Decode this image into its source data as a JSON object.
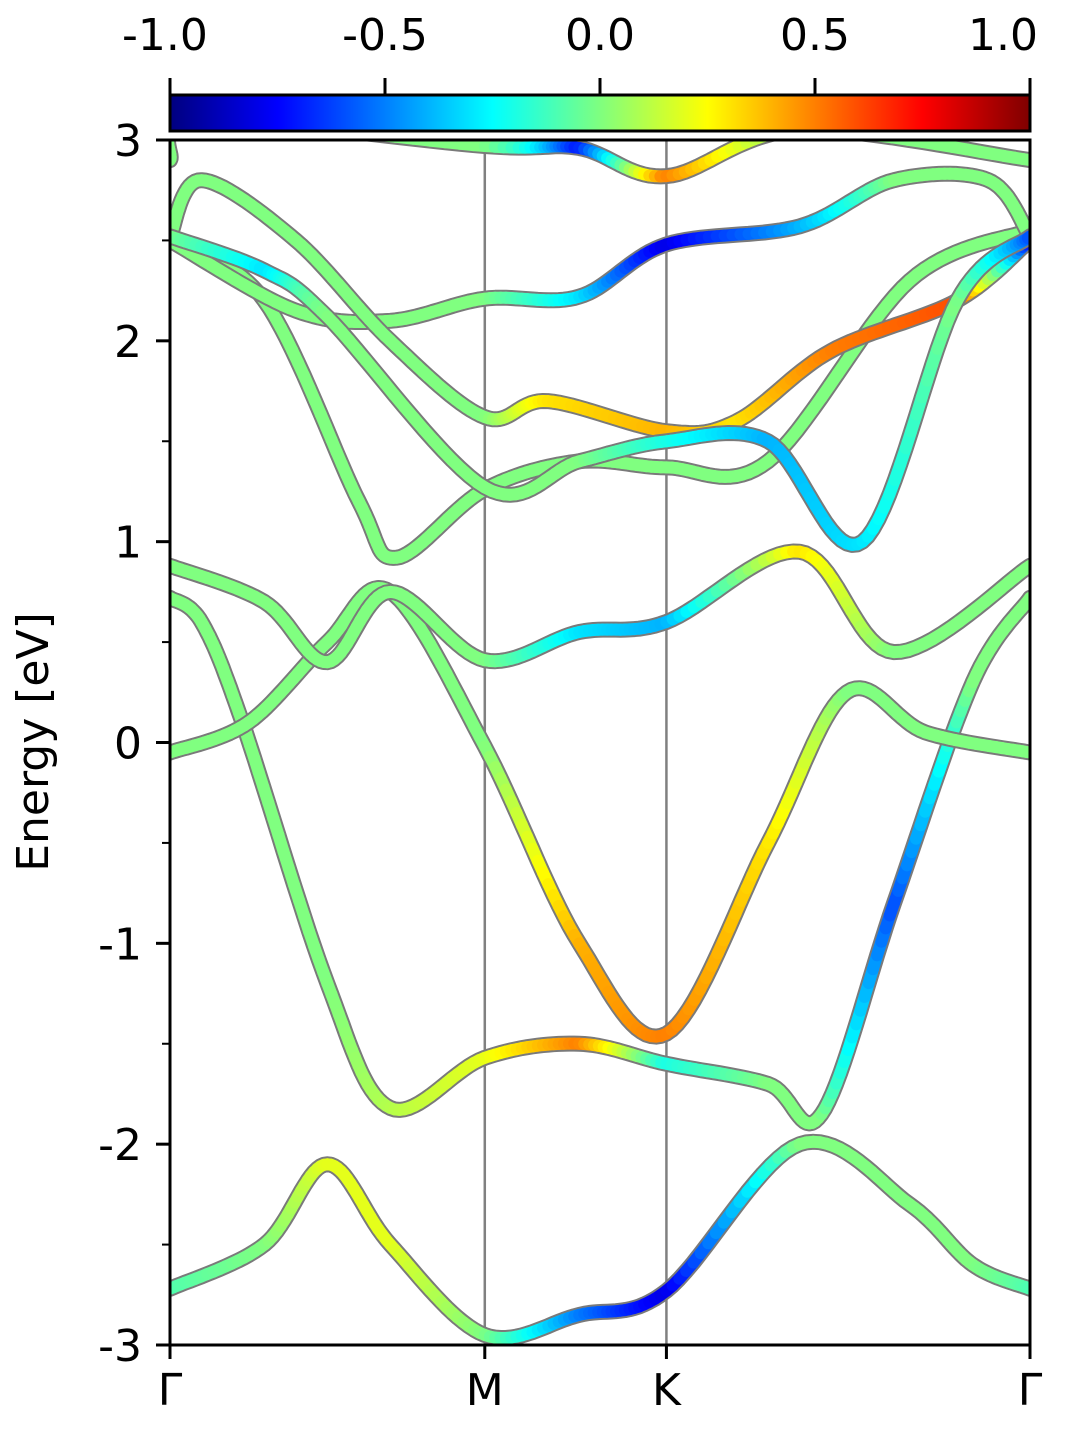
{
  "chart_data": {
    "type": "line",
    "title": "",
    "xlabel": "",
    "ylabel": "Energy [eV]",
    "ylim": [
      -3,
      3
    ],
    "yticks": [
      "-3",
      "-2",
      "-1",
      "0",
      "1",
      "2",
      "3"
    ],
    "yticks_values": [
      -3,
      -2,
      -1,
      0,
      1,
      2,
      3
    ],
    "x_high_symmetry": [
      {
        "label": "Γ",
        "x": 0.0
      },
      {
        "label": "M",
        "x": 1.0
      },
      {
        "label": "K",
        "x": 1.577
      },
      {
        "label": "Γ",
        "x": 2.732
      }
    ],
    "xlim": [
      0.0,
      2.732
    ],
    "colorbar": {
      "min": -1.0,
      "max": 1.0,
      "ticks": [
        "-1.0",
        "-0.5",
        "0.0",
        "0.5",
        "1.0"
      ],
      "tick_values": [
        -1.0,
        -0.5,
        0.0,
        0.5,
        1.0
      ],
      "colormap": "jet"
    },
    "series": [
      {
        "x": [
          0.0,
          0.3,
          0.5,
          0.7,
          1.0,
          1.3,
          1.577,
          2.0,
          2.35,
          2.55,
          2.732
        ],
        "y": [
          -2.72,
          -2.5,
          -2.1,
          -2.5,
          -2.95,
          -2.85,
          -2.73,
          -2.0,
          -2.3,
          -2.6,
          -2.72
        ],
        "c": [
          -0.1,
          0.0,
          0.2,
          0.2,
          0.0,
          -0.5,
          -0.8,
          0.0,
          0.0,
          0.0,
          -0.1
        ]
      },
      {
        "x": [
          0.0,
          0.1,
          0.23,
          0.5,
          0.7,
          1.0,
          1.3,
          1.577,
          1.9,
          2.07,
          2.3,
          2.55,
          2.732
        ],
        "y": [
          0.72,
          0.6,
          0.1,
          -1.2,
          -1.82,
          -1.57,
          -1.5,
          -1.6,
          -1.7,
          -1.85,
          -0.8,
          0.3,
          0.72
        ],
        "c": [
          0.0,
          0.0,
          0.0,
          0.0,
          0.1,
          0.2,
          0.5,
          -0.2,
          0.0,
          0.0,
          -0.6,
          0.0,
          0.0
        ]
      },
      {
        "x": [
          0.0,
          0.25,
          0.5,
          0.7,
          1.0,
          1.3,
          1.577,
          1.9,
          2.15,
          2.4,
          2.732
        ],
        "y": [
          -0.05,
          0.1,
          0.5,
          0.75,
          -0.02,
          -1.0,
          -1.45,
          -0.5,
          0.25,
          0.05,
          -0.05
        ],
        "c": [
          0.0,
          0.0,
          0.0,
          0.0,
          0.0,
          0.4,
          0.5,
          0.3,
          0.0,
          0.0,
          0.0
        ]
      },
      {
        "x": [
          0.0,
          0.3,
          0.5,
          0.7,
          1.0,
          1.3,
          1.577,
          2.0,
          2.3,
          2.732
        ],
        "y": [
          0.88,
          0.7,
          0.4,
          0.75,
          0.41,
          0.55,
          0.6,
          0.95,
          0.45,
          0.88
        ],
        "c": [
          0.0,
          0.0,
          0.0,
          0.0,
          0.0,
          -0.3,
          -0.4,
          0.3,
          0.0,
          0.0
        ]
      },
      {
        "x": [
          0.0,
          0.3,
          0.6,
          0.72,
          1.0,
          1.3,
          1.577,
          1.9,
          2.35,
          2.732
        ],
        "y": [
          2.5,
          2.2,
          1.2,
          0.92,
          1.26,
          1.4,
          1.37,
          1.4,
          2.3,
          2.55
        ],
        "c": [
          0.0,
          0.0,
          0.0,
          0.0,
          0.0,
          0.0,
          0.0,
          0.0,
          0.0,
          0.0
        ]
      },
      {
        "x": [
          0.0,
          0.4,
          0.7,
          1.0,
          1.3,
          1.577,
          2.0,
          2.3,
          2.6,
          2.732
        ],
        "y": [
          2.5,
          2.15,
          2.1,
          2.21,
          2.22,
          2.48,
          2.57,
          2.8,
          2.8,
          2.52
        ],
        "c": [
          0.0,
          0.0,
          0.0,
          0.0,
          -0.3,
          -0.8,
          -0.4,
          0.0,
          0.0,
          0.0
        ]
      },
      {
        "x": [
          0.0,
          0.1,
          0.4,
          0.7,
          1.0,
          1.2,
          1.577,
          1.8,
          2.1,
          2.5,
          2.732
        ],
        "y": [
          2.52,
          2.8,
          2.5,
          2.0,
          1.62,
          1.7,
          1.55,
          1.6,
          1.95,
          2.2,
          2.5
        ],
        "c": [
          0.0,
          0.0,
          0.0,
          0.0,
          0.0,
          0.3,
          0.4,
          0.3,
          0.5,
          0.6,
          -0.8
        ]
      },
      {
        "x": [
          0.0,
          0.3,
          0.5,
          1.0,
          1.3,
          1.577,
          1.9,
          2.2,
          2.5,
          2.732
        ],
        "y": [
          2.52,
          2.35,
          2.12,
          1.27,
          1.4,
          1.5,
          1.5,
          1.0,
          2.2,
          2.52
        ],
        "c": [
          0.0,
          -0.3,
          0.0,
          0.0,
          0.0,
          -0.2,
          -0.4,
          -0.3,
          0.0,
          -0.6
        ]
      },
      {
        "x": [
          0.0,
          0.1,
          1.0,
          1.3,
          1.577,
          2.0,
          2.732
        ],
        "y": [
          2.9,
          3.1,
          2.97,
          2.96,
          2.82,
          3.05,
          2.9
        ],
        "c": [
          0.0,
          0.0,
          0.0,
          -0.7,
          0.5,
          0.0,
          0.0
        ]
      }
    ]
  }
}
